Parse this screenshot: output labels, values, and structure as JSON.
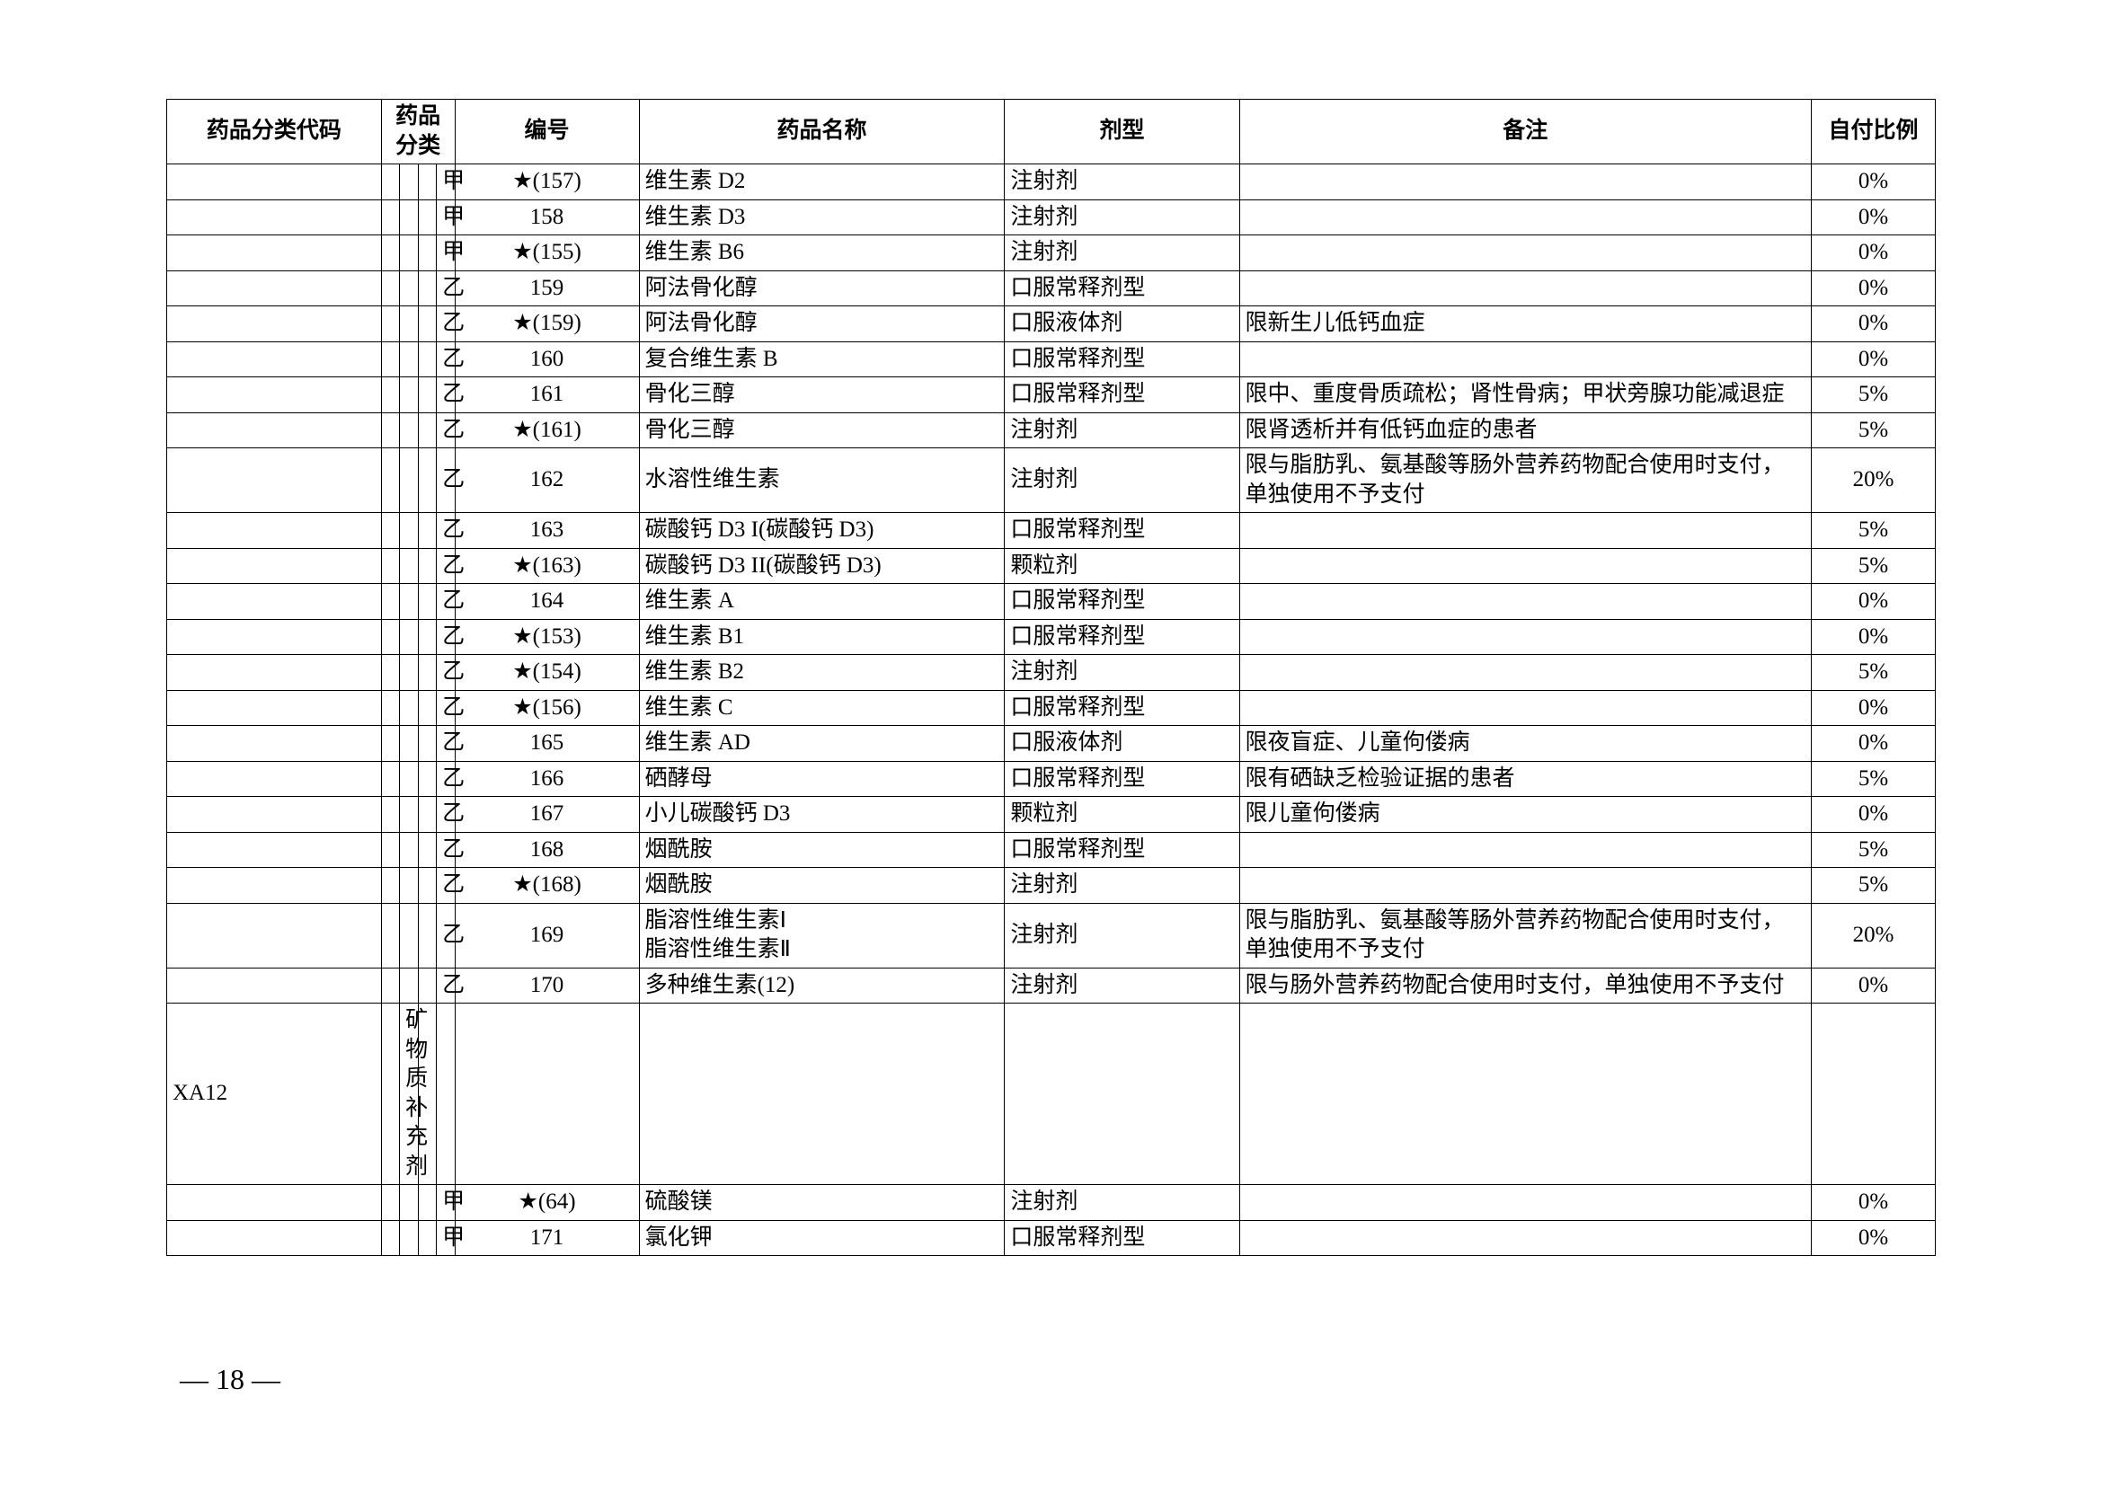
{
  "headers": {
    "code": "药品分类代码",
    "cat": "药品分类",
    "num": "编号",
    "name": "药品名称",
    "form": "剂型",
    "note": "备注",
    "pay": "自付比例"
  },
  "rows": [
    {
      "code": "",
      "cat1": "",
      "cat2": "",
      "cat3": "",
      "cat4": "甲",
      "num": "★(157)",
      "name": "维生素 D2",
      "form": "注射剂",
      "note": "",
      "pay": "0%"
    },
    {
      "code": "",
      "cat1": "",
      "cat2": "",
      "cat3": "",
      "cat4": "甲",
      "num": "158",
      "name": "维生素 D3",
      "form": "注射剂",
      "note": "",
      "pay": "0%"
    },
    {
      "code": "",
      "cat1": "",
      "cat2": "",
      "cat3": "",
      "cat4": "甲",
      "num": "★(155)",
      "name": "维生素 B6",
      "form": "注射剂",
      "note": "",
      "pay": "0%"
    },
    {
      "code": "",
      "cat1": "",
      "cat2": "",
      "cat3": "",
      "cat4": "乙",
      "num": "159",
      "name": "阿法骨化醇",
      "form": "口服常释剂型",
      "note": "",
      "pay": "0%"
    },
    {
      "code": "",
      "cat1": "",
      "cat2": "",
      "cat3": "",
      "cat4": "乙",
      "num": "★(159)",
      "name": "阿法骨化醇",
      "form": "口服液体剂",
      "note": "限新生儿低钙血症",
      "pay": "0%"
    },
    {
      "code": "",
      "cat1": "",
      "cat2": "",
      "cat3": "",
      "cat4": "乙",
      "num": "160",
      "name": "复合维生素 B",
      "form": "口服常释剂型",
      "note": "",
      "pay": "0%"
    },
    {
      "code": "",
      "cat1": "",
      "cat2": "",
      "cat3": "",
      "cat4": "乙",
      "num": "161",
      "name": "骨化三醇",
      "form": "口服常释剂型",
      "note": "限中、重度骨质疏松；肾性骨病；甲状旁腺功能减退症",
      "pay": "5%"
    },
    {
      "code": "",
      "cat1": "",
      "cat2": "",
      "cat3": "",
      "cat4": "乙",
      "num": "★(161)",
      "name": "骨化三醇",
      "form": "注射剂",
      "note": "限肾透析并有低钙血症的患者",
      "pay": "5%"
    },
    {
      "code": "",
      "cat1": "",
      "cat2": "",
      "cat3": "",
      "cat4": "乙",
      "num": "162",
      "name": "水溶性维生素",
      "form": "注射剂",
      "note": "限与脂肪乳、氨基酸等肠外营养药物配合使用时支付，单独使用不予支付",
      "pay": "20%"
    },
    {
      "code": "",
      "cat1": "",
      "cat2": "",
      "cat3": "",
      "cat4": "乙",
      "num": "163",
      "name": "碳酸钙 D3 I(碳酸钙 D3)",
      "form": "口服常释剂型",
      "note": "",
      "pay": "5%"
    },
    {
      "code": "",
      "cat1": "",
      "cat2": "",
      "cat3": "",
      "cat4": "乙",
      "num": "★(163)",
      "name": "碳酸钙 D3 II(碳酸钙 D3)",
      "form": "颗粒剂",
      "note": "",
      "pay": "5%"
    },
    {
      "code": "",
      "cat1": "",
      "cat2": "",
      "cat3": "",
      "cat4": "乙",
      "num": "164",
      "name": "维生素 A",
      "form": "口服常释剂型",
      "note": "",
      "pay": "0%"
    },
    {
      "code": "",
      "cat1": "",
      "cat2": "",
      "cat3": "",
      "cat4": "乙",
      "num": "★(153)",
      "name": "维生素 B1",
      "form": "口服常释剂型",
      "note": "",
      "pay": "0%"
    },
    {
      "code": "",
      "cat1": "",
      "cat2": "",
      "cat3": "",
      "cat4": "乙",
      "num": "★(154)",
      "name": "维生素 B2",
      "form": "注射剂",
      "note": "",
      "pay": "5%"
    },
    {
      "code": "",
      "cat1": "",
      "cat2": "",
      "cat3": "",
      "cat4": "乙",
      "num": "★(156)",
      "name": "维生素 C",
      "form": "口服常释剂型",
      "note": "",
      "pay": "0%"
    },
    {
      "code": "",
      "cat1": "",
      "cat2": "",
      "cat3": "",
      "cat4": "乙",
      "num": "165",
      "name": "维生素 AD",
      "form": "口服液体剂",
      "note": "限夜盲症、儿童佝偻病",
      "pay": "0%"
    },
    {
      "code": "",
      "cat1": "",
      "cat2": "",
      "cat3": "",
      "cat4": "乙",
      "num": "166",
      "name": "硒酵母",
      "form": "口服常释剂型",
      "note": "限有硒缺乏检验证据的患者",
      "pay": "5%"
    },
    {
      "code": "",
      "cat1": "",
      "cat2": "",
      "cat3": "",
      "cat4": "乙",
      "num": "167",
      "name": "小儿碳酸钙 D3",
      "form": "颗粒剂",
      "note": "限儿童佝偻病",
      "pay": "0%"
    },
    {
      "code": "",
      "cat1": "",
      "cat2": "",
      "cat3": "",
      "cat4": "乙",
      "num": "168",
      "name": "烟酰胺",
      "form": "口服常释剂型",
      "note": "",
      "pay": "5%"
    },
    {
      "code": "",
      "cat1": "",
      "cat2": "",
      "cat3": "",
      "cat4": "乙",
      "num": "★(168)",
      "name": "烟酰胺",
      "form": "注射剂",
      "note": "",
      "pay": "5%"
    },
    {
      "code": "",
      "cat1": "",
      "cat2": "",
      "cat3": "",
      "cat4": "乙",
      "num": "169",
      "name": "脂溶性维生素Ⅰ\n脂溶性维生素Ⅱ",
      "form": "注射剂",
      "note": "限与脂肪乳、氨基酸等肠外营养药物配合使用时支付，单独使用不予支付",
      "pay": "20%"
    },
    {
      "code": "",
      "cat1": "",
      "cat2": "",
      "cat3": "",
      "cat4": "乙",
      "num": "170",
      "name": "多种维生素(12)",
      "form": "注射剂",
      "note": "限与肠外营养药物配合使用时支付，单独使用不予支付",
      "pay": "0%"
    },
    {
      "code": "XA12",
      "cat1": "",
      "cat2": "矿物质补充剂",
      "cat3": "",
      "cat4": "",
      "num": "",
      "name": "",
      "form": "",
      "note": "",
      "pay": ""
    },
    {
      "code": "",
      "cat1": "",
      "cat2": "",
      "cat3": "",
      "cat4": "甲",
      "num": "★(64)",
      "name": "硫酸镁",
      "form": "注射剂",
      "note": "",
      "pay": "0%"
    },
    {
      "code": "",
      "cat1": "",
      "cat2": "",
      "cat3": "",
      "cat4": "甲",
      "num": "171",
      "name": "氯化钾",
      "form": "口服常释剂型",
      "note": "",
      "pay": "0%"
    }
  ],
  "pageNumber": "— 18 —"
}
